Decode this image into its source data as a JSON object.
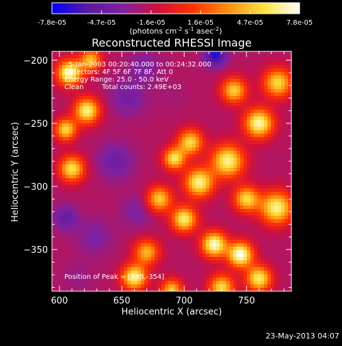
{
  "chart_data": {
    "type": "heatmap",
    "title": "Reconstructed RHESSI Image",
    "xlabel": "Heliocentric X (arcsec)",
    "ylabel": "Heliocentric Y (arcsec)",
    "xlim": [
      594,
      786
    ],
    "ylim": [
      -383,
      -193
    ],
    "x_ticks": [
      600,
      650,
      700,
      750
    ],
    "y_ticks": [
      -200,
      -250,
      -300,
      -350
    ],
    "colorbar": {
      "label": "(photons cm",
      "label_sup1": "-2",
      "label_mid": " s",
      "label_sup2": "-1",
      "label_mid2": " asec",
      "label_sup3": "-2",
      "label_end": ")",
      "ticks": [
        "-7.8e-05",
        "-4.7e-05",
        "-1.6e-05",
        "1.6e-05",
        "4.7e-05",
        "7.8e-05"
      ],
      "range": [
        -7.8e-05,
        7.8e-05
      ],
      "colormap": "blue-purple-red-orange-yellow-white",
      "stops": [
        "#0000ff",
        "#5a1aa0",
        "#8020a0",
        "#d0103c",
        "#ff3300",
        "#ff9010",
        "#ffe040",
        "#ffffff"
      ]
    },
    "annotations": {
      "line1": "5-Jan-2003 00:20:40.000 to 00:24:32.000",
      "line2": "Detectors: 4F 5F 6F 7F 8F, Att 0",
      "line3": "Energy Range: 25.0 - 50.0 keV",
      "line4_label": "Clean",
      "line4_counts": "Total counts: 2.49E+03",
      "peak": "Position of Peak = [745,-354]"
    },
    "blobs": [
      {
        "x": 745,
        "y": -354,
        "v": 1.0,
        "s": 7
      },
      {
        "x": 724,
        "y": -346,
        "v": 0.95,
        "s": 7
      },
      {
        "x": 660,
        "y": -372,
        "v": 0.85,
        "s": 7
      },
      {
        "x": 700,
        "y": -326,
        "v": 0.8,
        "s": 7
      },
      {
        "x": 712,
        "y": -297,
        "v": 0.85,
        "s": 8
      },
      {
        "x": 735,
        "y": -280,
        "v": 0.85,
        "s": 9
      },
      {
        "x": 760,
        "y": -250,
        "v": 0.9,
        "s": 8
      },
      {
        "x": 774,
        "y": -317,
        "v": 0.85,
        "s": 9
      },
      {
        "x": 760,
        "y": -373,
        "v": 0.8,
        "s": 7
      },
      {
        "x": 705,
        "y": -265,
        "v": 0.7,
        "s": 7
      },
      {
        "x": 680,
        "y": -310,
        "v": 0.65,
        "s": 7
      },
      {
        "x": 692,
        "y": -278,
        "v": 0.75,
        "s": 6
      },
      {
        "x": 740,
        "y": -224,
        "v": 0.65,
        "s": 7
      },
      {
        "x": 775,
        "y": -218,
        "v": 0.7,
        "s": 8
      },
      {
        "x": 750,
        "y": -310,
        "v": 0.7,
        "s": 7
      },
      {
        "x": 608,
        "y": -210,
        "v": 0.95,
        "s": 7
      },
      {
        "x": 622,
        "y": -240,
        "v": 0.85,
        "s": 7
      },
      {
        "x": 610,
        "y": -286,
        "v": 0.75,
        "s": 7
      },
      {
        "x": 605,
        "y": -255,
        "v": 0.7,
        "s": 6
      },
      {
        "x": 625,
        "y": -200,
        "v": 0.6,
        "s": 6
      },
      {
        "x": 670,
        "y": -352,
        "v": 0.55,
        "s": 7
      },
      {
        "x": 730,
        "y": -380,
        "v": 0.7,
        "s": 7
      },
      {
        "x": 690,
        "y": -382,
        "v": 0.6,
        "s": 6
      },
      {
        "x": 655,
        "y": -230,
        "v": -0.5,
        "s": 10
      },
      {
        "x": 645,
        "y": -280,
        "v": -0.55,
        "s": 10
      },
      {
        "x": 668,
        "y": -205,
        "v": -0.45,
        "s": 9
      },
      {
        "x": 628,
        "y": -340,
        "v": -0.45,
        "s": 10
      },
      {
        "x": 725,
        "y": -196,
        "v": -0.9,
        "s": 6
      },
      {
        "x": 605,
        "y": -325,
        "v": -0.6,
        "s": 7
      },
      {
        "x": 662,
        "y": -320,
        "v": -0.45,
        "s": 9
      },
      {
        "x": 615,
        "y": -372,
        "v": -0.35,
        "s": 9
      },
      {
        "x": 690,
        "y": -228,
        "v": -0.3,
        "s": 8
      }
    ],
    "floor_value": -0.25,
    "timestamp": "23-May-2013 04:07"
  }
}
